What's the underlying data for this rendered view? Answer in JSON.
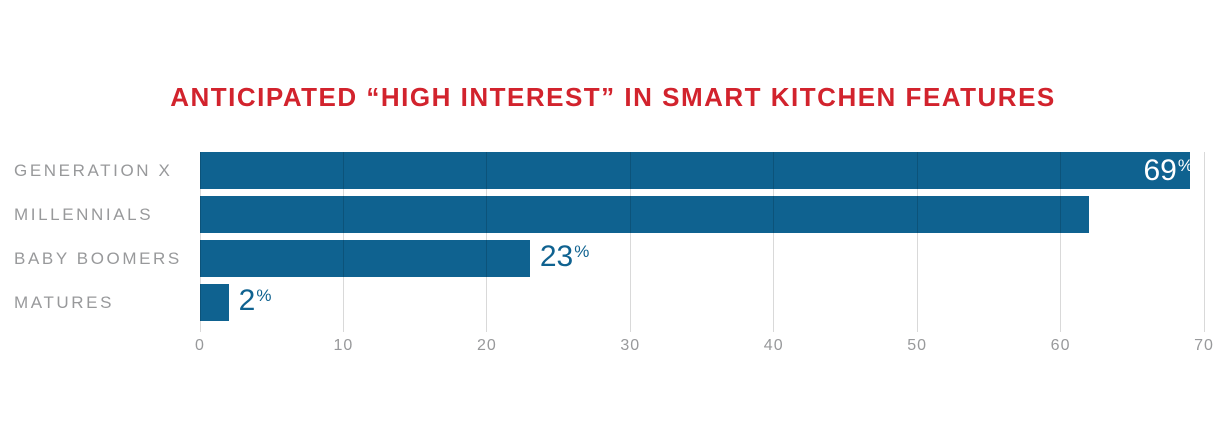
{
  "chart_data": {
    "type": "bar",
    "orientation": "horizontal",
    "title": "ANTICIPATED “HIGH INTEREST” IN SMART KITCHEN FEATURES",
    "categories": [
      "GENERATION X",
      "MILLENNIALS",
      "BABY BOOMERS",
      "MATURES"
    ],
    "values": [
      69,
      62,
      23,
      2
    ],
    "value_suffix": "%",
    "xlabel": "",
    "ylabel": "",
    "xlim": [
      0,
      70
    ],
    "x_ticks": [
      0,
      10,
      20,
      30,
      40,
      50,
      60,
      70
    ],
    "grid": "vertical",
    "legend": "none",
    "inside_label_min": 30,
    "colors": {
      "bar": "#0F6290",
      "title": "#D2232D",
      "category_label": "#98999B",
      "tick_label": "#98999B",
      "value_inside": "#FFFFFF",
      "value_outside": "#0F6290",
      "gridline_rgba": "rgba(0,0,0,0.15)"
    }
  }
}
